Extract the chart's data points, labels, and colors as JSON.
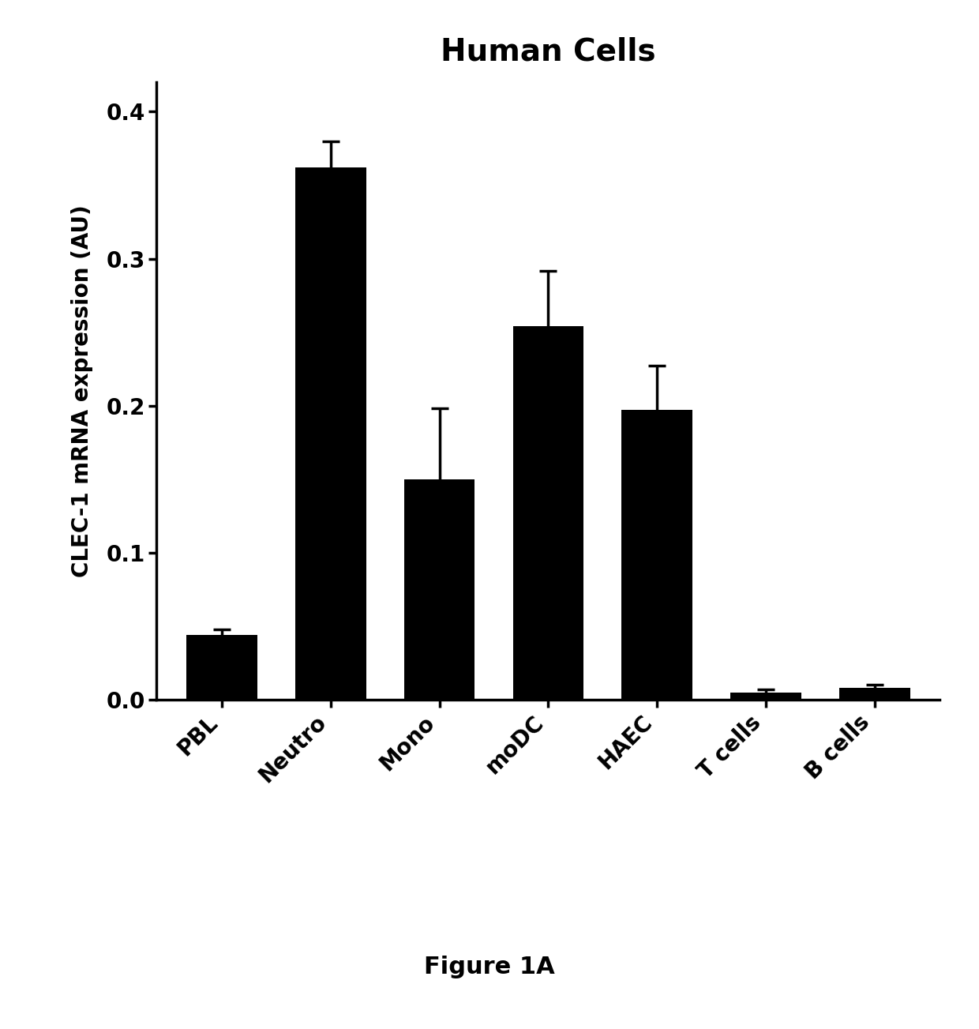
{
  "title": "Human Cells",
  "ylabel": "CLEC-1 mRNA expression (AU)",
  "categories": [
    "PBL",
    "Neutro",
    "Mono",
    "moDC",
    "HAEC",
    "T cells",
    "B cells"
  ],
  "values": [
    0.044,
    0.362,
    0.15,
    0.254,
    0.197,
    0.005,
    0.008
  ],
  "errors": [
    0.004,
    0.018,
    0.048,
    0.038,
    0.03,
    0.002,
    0.002
  ],
  "bar_color": "#000000",
  "background_color": "#ffffff",
  "ylim": [
    0,
    0.42
  ],
  "yticks": [
    0.0,
    0.1,
    0.2,
    0.3,
    0.4
  ],
  "title_fontsize": 28,
  "ylabel_fontsize": 20,
  "tick_fontsize": 20,
  "caption": "Figure 1A",
  "caption_fontsize": 22,
  "bar_width": 0.65,
  "spine_linewidth": 2.5,
  "tick_linewidth": 2.5,
  "capsize": 8,
  "error_linewidth": 2.5
}
